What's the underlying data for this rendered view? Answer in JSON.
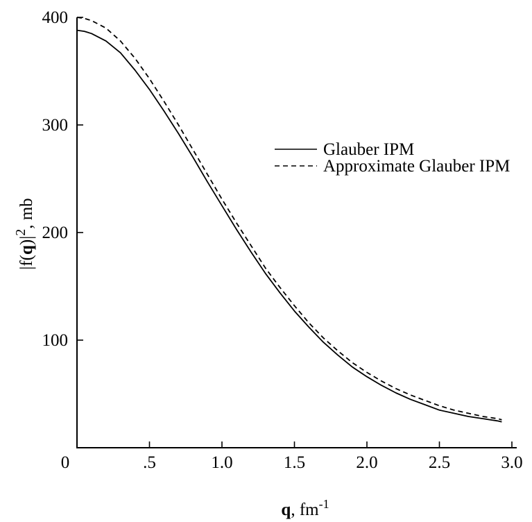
{
  "chart_data": {
    "type": "line",
    "xlabel": {
      "bold": "q",
      "rest": ", fm",
      "sup": "-1"
    },
    "ylabel": {
      "pre": "|f(",
      "bold": "q",
      "mid": ")|",
      "sup": "2",
      "post": ", mb"
    },
    "xlim": [
      0,
      3.0
    ],
    "ylim": [
      0,
      400
    ],
    "xticks": [
      0,
      0.5,
      1.0,
      1.5,
      2.0,
      2.5,
      3.0
    ],
    "xtick_labels": [
      "0",
      ".5",
      "1.0",
      "1.5",
      "2.0",
      "2.5",
      "3.0"
    ],
    "yticks": [
      100,
      200,
      300,
      400
    ],
    "ytick_labels": [
      "100",
      "200",
      "300",
      "400"
    ],
    "grid": false,
    "legend_position": "upper-right",
    "series": [
      {
        "name": "Glauber IPM",
        "style": "solid",
        "x": [
          0.0,
          0.05,
          0.1,
          0.2,
          0.3,
          0.4,
          0.5,
          0.6,
          0.7,
          0.8,
          0.9,
          1.0,
          1.1,
          1.2,
          1.3,
          1.4,
          1.5,
          1.6,
          1.7,
          1.8,
          1.9,
          2.0,
          2.1,
          2.2,
          2.3,
          2.4,
          2.5,
          2.6,
          2.7,
          2.8,
          2.9,
          2.93
        ],
        "y": [
          388,
          387,
          385,
          378,
          367,
          351,
          333,
          313,
          292,
          270,
          247,
          225,
          203,
          182,
          162,
          144,
          127,
          112,
          98,
          86,
          75,
          66,
          58,
          51,
          45,
          40,
          35,
          32,
          29,
          27,
          25,
          24
        ]
      },
      {
        "name": "Approximate Glauber IPM",
        "style": "dashed",
        "x": [
          0.0,
          0.05,
          0.1,
          0.2,
          0.3,
          0.4,
          0.5,
          0.6,
          0.7,
          0.8,
          0.9,
          1.0,
          1.1,
          1.2,
          1.3,
          1.4,
          1.5,
          1.6,
          1.7,
          1.8,
          1.9,
          2.0,
          2.1,
          2.2,
          2.3,
          2.4,
          2.5,
          2.6,
          2.7,
          2.8,
          2.9,
          2.93
        ],
        "y": [
          400,
          399,
          397,
          390,
          378,
          362,
          343,
          322,
          300,
          277,
          254,
          231,
          209,
          188,
          167,
          149,
          132,
          116,
          102,
          90,
          79,
          70,
          62,
          55,
          49,
          44,
          39,
          35,
          32,
          29,
          27,
          26
        ]
      }
    ]
  }
}
